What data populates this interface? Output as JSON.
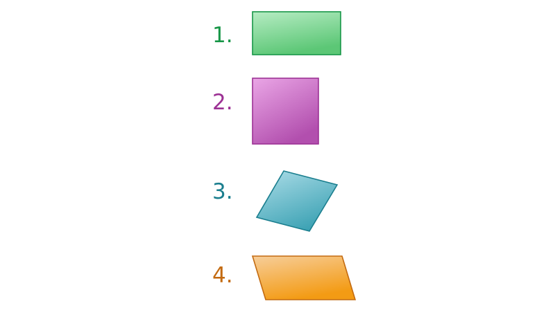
{
  "items": [
    {
      "number": "1.",
      "shape": "rectangle",
      "color": "#179647"
    },
    {
      "number": "2.",
      "shape": "square",
      "color": "#9c3194"
    },
    {
      "number": "3.",
      "shape": "rhombus",
      "color": "#1a7e8e"
    },
    {
      "number": "4.",
      "shape": "parallelogram",
      "color": "#c36a10"
    }
  ]
}
